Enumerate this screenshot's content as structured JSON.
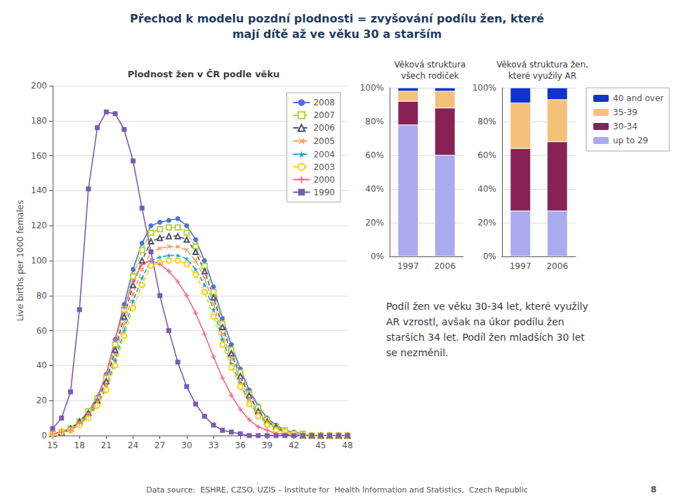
{
  "title": "Přechod k modelu pozdní plodnosti = zvyšování podílu žen, které\nmají dítě až ve věku 30 a starším",
  "annotations": [
    "Podíl žen ve věku 30-34 let, které využily\nAR vzrostl, avšak na úkor podílu žen\nstarších 34 let. Podíl žen mladších 30 let\nse nezměnil.",
    "Data source:  ESHRE, CZSO, UZIS – Institute for  Health Information and Statistics,  Czech Republic",
    "8"
  ],
  "chart_data": [
    {
      "type": "line",
      "title": "Plodnost žen v ČR podle věku",
      "y_label": "Live births per 1000 females",
      "x": [
        15,
        16,
        17,
        18,
        19,
        20,
        21,
        22,
        23,
        24,
        25,
        26,
        27,
        28,
        29,
        30,
        31,
        32,
        33,
        34,
        35,
        36,
        37,
        38,
        39,
        40,
        41,
        42,
        43,
        44,
        45,
        46,
        47,
        48
      ],
      "xlim": [
        15,
        48
      ],
      "xticks": [
        15,
        18,
        21,
        24,
        27,
        30,
        33,
        36,
        39,
        42,
        45,
        48
      ],
      "ylim": [
        0,
        200
      ],
      "yticks": [
        0,
        20,
        40,
        60,
        80,
        100,
        120,
        140,
        160,
        180,
        200
      ],
      "grid": true,
      "legend": "upper right",
      "series": [
        {
          "name": "2008",
          "marker": "circle",
          "line_style": "solid",
          "values": [
            1,
            2,
            4,
            8,
            14,
            22,
            35,
            55,
            75,
            95,
            110,
            120,
            122,
            123,
            124,
            120,
            112,
            100,
            85,
            67,
            52,
            38,
            26,
            17,
            10,
            6,
            3,
            2,
            1,
            0,
            0,
            0,
            0,
            0
          ]
        },
        {
          "name": "2007",
          "marker": "square-open",
          "line_style": "dashed",
          "values": [
            1,
            2,
            4,
            8,
            14,
            21,
            33,
            52,
            72,
            91,
            106,
            116,
            118,
            119,
            119,
            116,
            108,
            97,
            82,
            64,
            49,
            36,
            24,
            16,
            9,
            5,
            3,
            1,
            1,
            0,
            0,
            0,
            0,
            0
          ]
        },
        {
          "name": "2006",
          "marker": "triangle-open",
          "line_style": "dashed",
          "values": [
            1,
            2,
            4,
            8,
            13,
            20,
            31,
            49,
            68,
            86,
            100,
            111,
            113,
            114,
            114,
            112,
            105,
            94,
            79,
            62,
            47,
            34,
            23,
            14,
            8,
            5,
            2,
            1,
            0,
            0,
            0,
            0,
            0,
            0
          ]
        },
        {
          "name": "2005",
          "marker": "x",
          "line_style": "dashed",
          "values": [
            1,
            2,
            3,
            7,
            12,
            19,
            29,
            46,
            64,
            81,
            95,
            105,
            107,
            108,
            108,
            106,
            100,
            90,
            75,
            58,
            44,
            32,
            21,
            13,
            8,
            4,
            2,
            1,
            0,
            0,
            0,
            0,
            0,
            0
          ]
        },
        {
          "name": "2004",
          "marker": "star",
          "line_style": "dashed",
          "values": [
            1,
            2,
            3,
            7,
            11,
            18,
            27,
            43,
            60,
            77,
            90,
            100,
            102,
            103,
            103,
            101,
            95,
            86,
            72,
            55,
            41,
            30,
            19,
            12,
            7,
            4,
            2,
            1,
            0,
            0,
            0,
            0,
            0,
            0
          ]
        },
        {
          "name": "2003",
          "marker": "circle-open",
          "line_style": "dashed",
          "values": [
            1,
            2,
            3,
            6,
            10,
            17,
            26,
            40,
            57,
            73,
            86,
            97,
            99,
            100,
            100,
            98,
            92,
            82,
            68,
            52,
            39,
            28,
            18,
            11,
            6,
            3,
            2,
            1,
            0,
            0,
            0,
            0,
            0,
            0
          ]
        },
        {
          "name": "2000",
          "marker": "plus",
          "line_style": "solid",
          "values": [
            1,
            2,
            3,
            7,
            12,
            21,
            35,
            55,
            73,
            88,
            98,
            100,
            98,
            94,
            88,
            80,
            70,
            58,
            45,
            33,
            23,
            15,
            9,
            5,
            3,
            1,
            1,
            0,
            0,
            0,
            0,
            0,
            0,
            0
          ]
        },
        {
          "name": "1990",
          "marker": "square",
          "line_style": "solid",
          "values": [
            4,
            10,
            25,
            72,
            141,
            176,
            185,
            184,
            175,
            157,
            130,
            105,
            80,
            60,
            42,
            28,
            18,
            11,
            6,
            3,
            2,
            1,
            0,
            0,
            0,
            0,
            0,
            0,
            0,
            0,
            0,
            0,
            0,
            0
          ]
        }
      ]
    },
    {
      "type": "bar",
      "stacked": true,
      "title": "Věková struktura\nvšech rodiček",
      "categories": [
        "1997",
        "2006"
      ],
      "ylim": [
        0,
        100
      ],
      "yticks": [
        {
          "value": 0,
          "label": "0%"
        },
        {
          "value": 20,
          "label": "20%"
        },
        {
          "value": 40,
          "label": "40%"
        },
        {
          "value": 60,
          "label": "60%"
        },
        {
          "value": 80,
          "label": "80%"
        },
        {
          "value": 100,
          "label": "100%"
        }
      ],
      "grid": true,
      "series": [
        {
          "name": "up to 29",
          "color": "#aaaaee",
          "values": [
            78,
            60
          ]
        },
        {
          "name": "30-34",
          "color": "#882255",
          "values": [
            14,
            28
          ]
        },
        {
          "name": "35-39",
          "color": "#f5c07a",
          "values": [
            6,
            10
          ]
        },
        {
          "name": "40 and over",
          "color": "#1133cc",
          "values": [
            2,
            2
          ]
        }
      ]
    },
    {
      "type": "bar",
      "stacked": true,
      "title": "Věková struktura žen,\nkteré využily AR",
      "categories": [
        "1997",
        "2006"
      ],
      "ylim": [
        0,
        100
      ],
      "yticks": [
        {
          "value": 0,
          "label": "0%"
        },
        {
          "value": 20,
          "label": "20%"
        },
        {
          "value": 40,
          "label": "40%"
        },
        {
          "value": 60,
          "label": "60%"
        },
        {
          "value": 80,
          "label": "80%"
        },
        {
          "value": 100,
          "label": "100%"
        }
      ],
      "grid": true,
      "legend": "right",
      "series": [
        {
          "name": "up to 29",
          "color": "#aaaaee",
          "values": [
            27,
            27
          ]
        },
        {
          "name": "30-34",
          "color": "#882255",
          "values": [
            37,
            41
          ]
        },
        {
          "name": "35-39",
          "color": "#f5c07a",
          "values": [
            27,
            25
          ]
        },
        {
          "name": "40 and over",
          "color": "#1133cc",
          "values": [
            9,
            7
          ]
        }
      ]
    }
  ]
}
